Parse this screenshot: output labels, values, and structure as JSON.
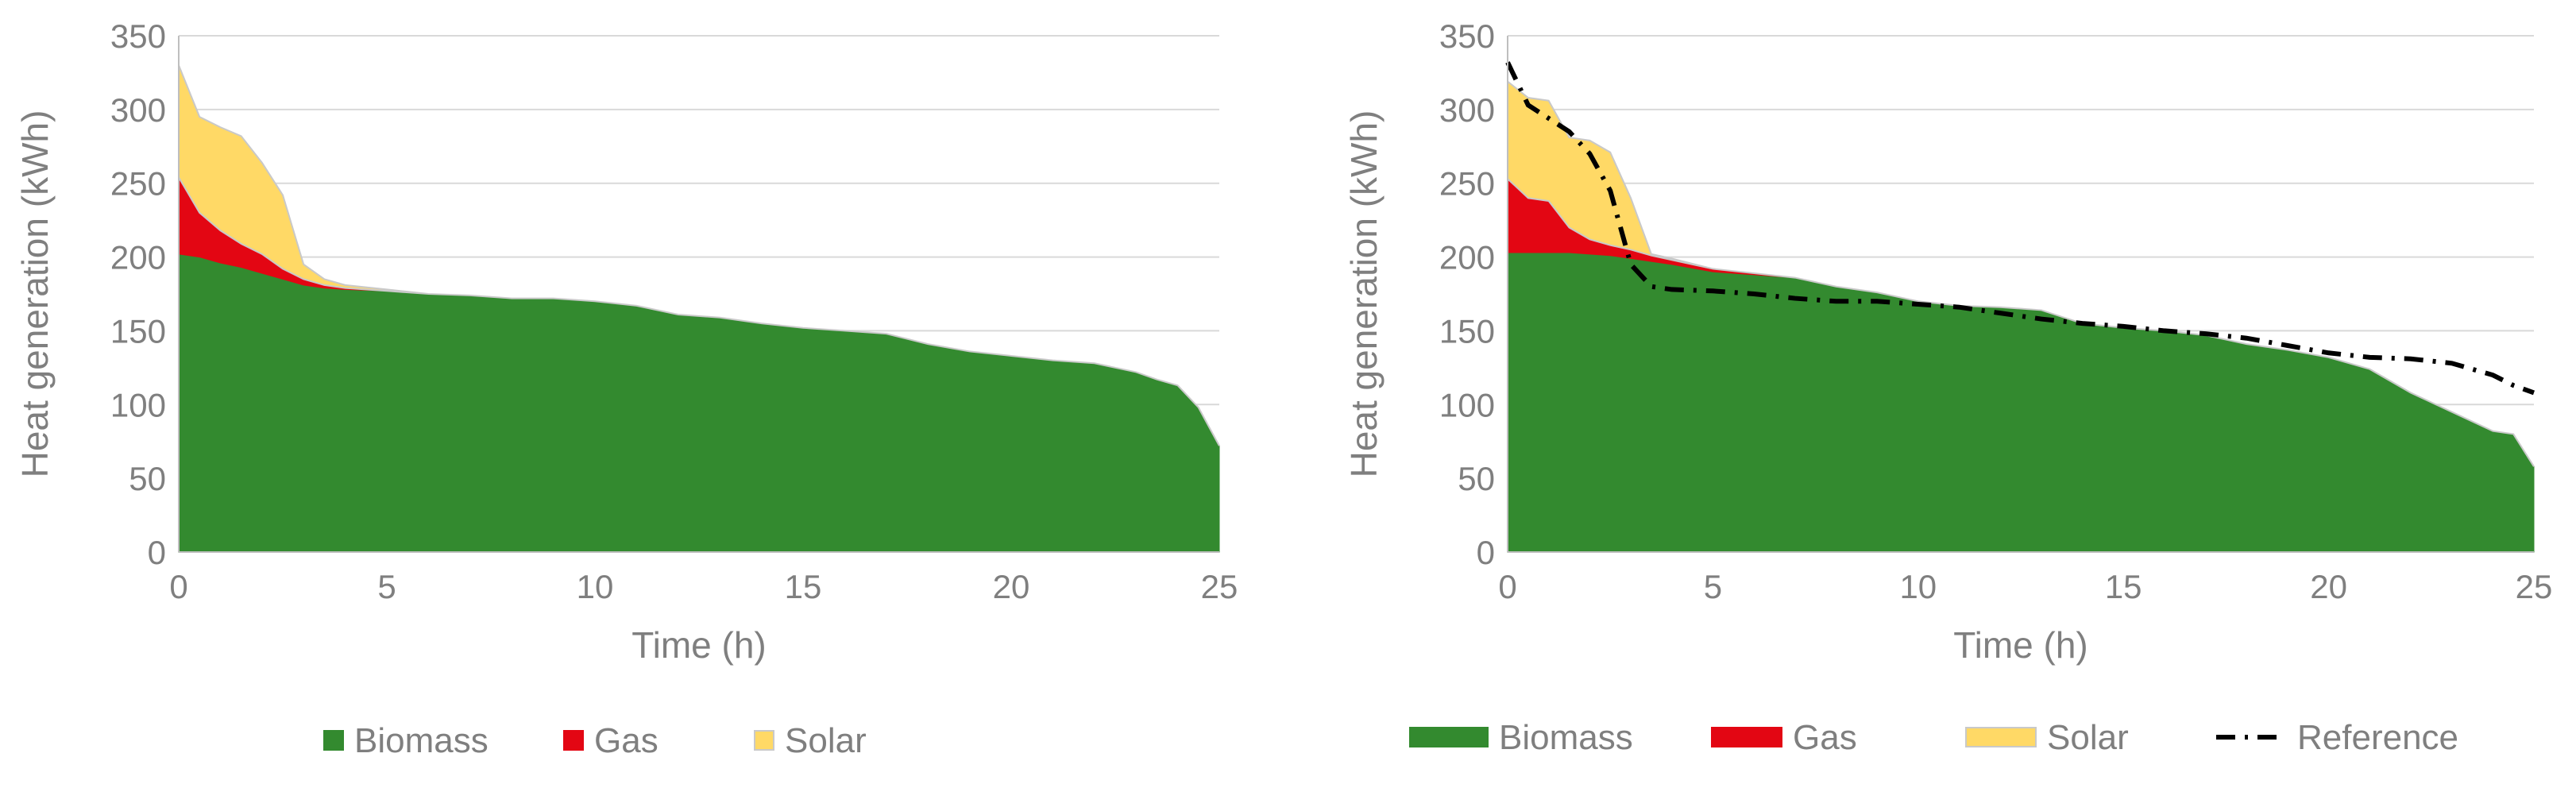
{
  "colors": {
    "biomass": "#338a2f",
    "gas": "#e30613",
    "solar": "#ffd966",
    "reference": "#000000",
    "text": "#7f7f7f",
    "grid": "#d9d9d9"
  },
  "chart_data": [
    {
      "type": "area",
      "stacked": true,
      "xlabel": "Time (h)",
      "ylabel": "Heat generation  (kWh)",
      "xlim": [
        0,
        25
      ],
      "ylim": [
        0,
        350
      ],
      "xticks": [
        "0",
        "5",
        "10",
        "15",
        "20",
        "25"
      ],
      "yticks": [
        "0",
        "50",
        "100",
        "150",
        "200",
        "250",
        "300",
        "350"
      ],
      "grid": true,
      "legend": [
        "Biomass",
        "Gas",
        "Solar"
      ],
      "legend_position": "bottom",
      "x": [
        0,
        0.5,
        1,
        1.5,
        2,
        2.5,
        3,
        3.5,
        4,
        5,
        6,
        7,
        8,
        9,
        10,
        11,
        12,
        13,
        14,
        15,
        16,
        17,
        18,
        19,
        20,
        21,
        22,
        23,
        23.5,
        24,
        24.5,
        25
      ],
      "series": [
        {
          "name": "Biomass",
          "values": [
            202,
            200,
            196,
            193,
            189,
            185,
            181,
            179,
            178,
            177,
            175,
            174,
            172,
            172,
            170,
            167,
            161,
            159,
            155,
            152,
            150,
            148,
            141,
            136,
            133,
            130,
            128,
            122,
            117,
            113,
            98,
            72
          ]
        },
        {
          "name": "Gas",
          "values": [
            52,
            30,
            22,
            16,
            13,
            7,
            4,
            2,
            1,
            0,
            0,
            0,
            0,
            0,
            0,
            0,
            0,
            0,
            0,
            0,
            0,
            0,
            0,
            0,
            0,
            0,
            0,
            0,
            0,
            0,
            0,
            0
          ]
        },
        {
          "name": "Solar",
          "values": [
            76,
            65,
            70,
            73,
            62,
            50,
            10,
            4,
            2,
            1,
            0,
            0,
            0,
            0,
            0,
            0,
            0,
            0,
            0,
            0,
            0,
            0,
            0,
            0,
            0,
            0,
            0,
            0,
            0,
            0,
            0,
            0
          ]
        }
      ]
    },
    {
      "type": "area",
      "stacked": true,
      "xlabel": "Time (h)",
      "ylabel": "Heat generation  (kWh)",
      "xlim": [
        0,
        25
      ],
      "ylim": [
        0,
        350
      ],
      "xticks": [
        "0",
        "5",
        "10",
        "15",
        "20",
        "25"
      ],
      "yticks": [
        "0",
        "50",
        "100",
        "150",
        "200",
        "250",
        "300",
        "350"
      ],
      "grid": true,
      "legend": [
        "Biomass",
        "Gas",
        "Solar",
        "Reference"
      ],
      "legend_position": "bottom",
      "x": [
        0,
        0.5,
        1,
        1.5,
        2,
        2.5,
        3,
        3.5,
        4,
        5,
        6,
        7,
        8,
        9,
        10,
        11,
        12,
        13,
        14,
        15,
        16,
        17,
        18,
        19,
        20,
        21,
        22,
        23,
        24,
        24.5,
        25
      ],
      "series": [
        {
          "name": "Biomass",
          "values": [
            203,
            203,
            203,
            203,
            202,
            201,
            199,
            197,
            195,
            190,
            188,
            186,
            180,
            176,
            170,
            167,
            166,
            164,
            155,
            152,
            150,
            147,
            141,
            137,
            132,
            124,
            108,
            95,
            82,
            80,
            58
          ]
        },
        {
          "name": "Gas",
          "values": [
            50,
            37,
            35,
            17,
            10,
            7,
            6,
            4,
            3,
            2,
            1,
            0,
            0,
            0,
            0,
            0,
            0,
            0,
            0,
            0,
            0,
            0,
            0,
            0,
            0,
            0,
            0,
            0,
            0,
            0,
            0
          ]
        },
        {
          "name": "Solar",
          "values": [
            66,
            68,
            68,
            61,
            67,
            63,
            35,
            1,
            1,
            0,
            0,
            0,
            0,
            0,
            0,
            0,
            0,
            0,
            0,
            0,
            0,
            0,
            0,
            0,
            0,
            0,
            0,
            0,
            0,
            0,
            0
          ]
        }
      ],
      "reference": {
        "name": "Reference",
        "x": [
          0,
          0.5,
          1.5,
          2,
          2.5,
          3,
          3.5,
          4,
          5,
          6,
          7,
          8,
          9,
          10,
          11,
          12,
          13,
          14,
          15,
          16,
          17,
          18,
          19,
          20,
          21,
          22,
          23,
          24,
          24.5,
          25
        ],
        "values": [
          332,
          303,
          285,
          270,
          245,
          195,
          180,
          178,
          177,
          175,
          172,
          170,
          170,
          168,
          166,
          162,
          158,
          155,
          153,
          150,
          148,
          145,
          140,
          135,
          132,
          131,
          128,
          120,
          113,
          108
        ]
      }
    }
  ]
}
